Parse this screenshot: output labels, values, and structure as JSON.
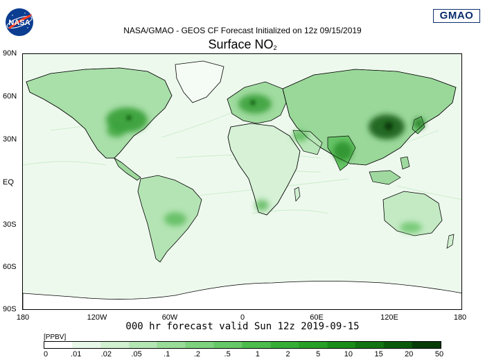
{
  "header": {
    "nasa_logo_text": "NASA",
    "gmao_logo_text": "GMAO",
    "forecast_line": "NASA/GMAO - GEOS CF Forecast Initialized on 12z 09/15/2019",
    "title_main": "Surface NO",
    "title_sub": "2"
  },
  "map": {
    "lat_labels": [
      "90N",
      "60N",
      "30N",
      "EQ",
      "30S",
      "60S",
      "90S"
    ],
    "lon_labels": [
      "180",
      "120W",
      "60W",
      "0",
      "60E",
      "120E",
      "180"
    ],
    "colors": {
      "land_outline": "#000000",
      "background": "#f2fbf2",
      "hotspot": "#0f4a12"
    }
  },
  "valid_line": "000 hr forecast valid Sun 12z 2019-09-15",
  "legend": {
    "units": "[PPBV]",
    "ticks": [
      "0",
      ".01",
      ".02",
      ".05",
      ".1",
      ".2",
      ".5",
      "1",
      "2",
      "5",
      "10",
      "15",
      "20",
      "50"
    ],
    "colors": [
      "#ffffff",
      "#e8f8e8",
      "#d0f0d0",
      "#b4e6b4",
      "#98dc98",
      "#7ed27e",
      "#66c866",
      "#4cbc4c",
      "#36ae36",
      "#26a026",
      "#1a8c1a",
      "#127412",
      "#0b5a0b",
      "#073c07"
    ]
  }
}
